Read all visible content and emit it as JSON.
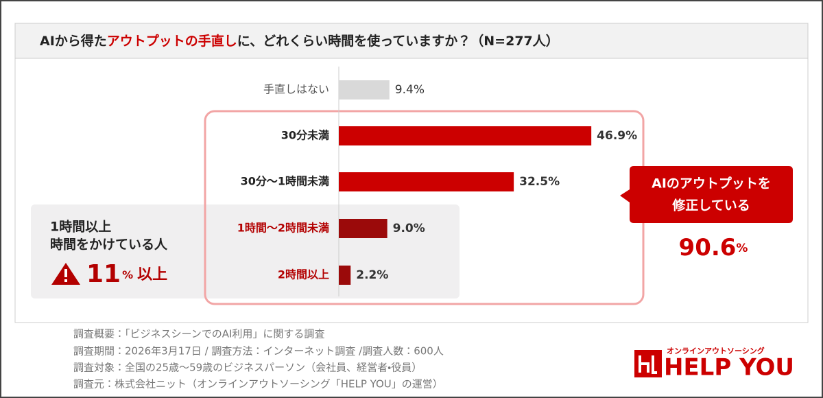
{
  "chart_data": {
    "type": "hbar",
    "title_parts": [
      "AIから得た",
      "アウトプットの手直し",
      "に、どれくらい時間を使っていますか？（N=277人）"
    ],
    "categories": [
      "手直しはない",
      "30分未満",
      "30分〜1時間未満",
      "1時間〜2時間未満",
      "2時間以上"
    ],
    "values": [
      9.4,
      46.9,
      32.5,
      9.0,
      2.2
    ],
    "value_labels": [
      "9.4%",
      "46.9%",
      "32.5%",
      "9.0%",
      "2.2%"
    ],
    "colors": [
      "#d9d9d9",
      "#cc0000",
      "#cc0000",
      "#9b0a0a",
      "#9b0a0a"
    ],
    "xlim": [
      0,
      100
    ],
    "callout": {
      "lines": [
        "AIのアウトプットを",
        "修正している"
      ],
      "total": "90.6",
      "unit": "%"
    },
    "side_box": {
      "lines": [
        "1時間以上",
        "時間をかけている人"
      ],
      "number": "11",
      "unit": "%",
      "suffix": "以上"
    },
    "notes": [
      "調査概要：「ビジネスシーンでのAI利用」に関する調査",
      "調査期間：2026年3月17日 / 調査方法：インターネット調査 /調査人数：600人",
      "調査対象：全国の25歳〜59歳のビジネスパーソン（会社員、経営者・役員）",
      "調査元：株式会社ニット（オンラインアウトソーシング「HELP YOU」の運営）"
    ],
    "logo": {
      "tagline": "オンラインアウトソーシング",
      "name": "HELP YOU"
    }
  }
}
